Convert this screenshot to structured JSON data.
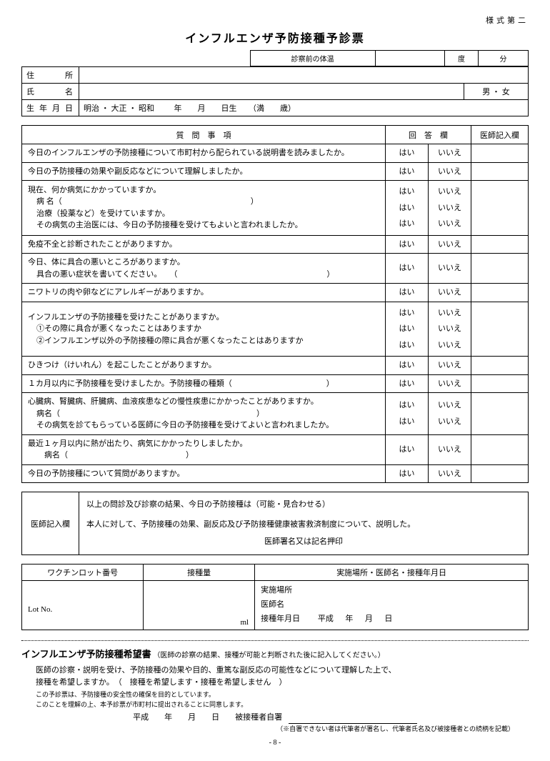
{
  "formNumber": "様式第二",
  "title": "インフルエンザ予防接種予診票",
  "temp": {
    "label": "診察前の体温",
    "deg": "度",
    "min": "分"
  },
  "info": {
    "addressLabel": "住　　所",
    "nameLabel": "氏　　名",
    "genderLabel": "男 ・ 女",
    "dobLabel": "生 年 月 日",
    "dobEras": "明治 ・ 大正 ・ 昭和",
    "dobYear": "年",
    "dobMonth": "月",
    "dobDayBorn": "日生",
    "ageOpen": "（満",
    "ageClose": "歳）"
  },
  "qHeader": {
    "question": "質　問　事　項",
    "answer": "回　答　欄",
    "doctor": "医師記入欄"
  },
  "ans": {
    "yes": "はい",
    "no": "いいえ"
  },
  "questions": [
    {
      "lines": [
        "今日のインフルエンザの予防接種について市町村から配られている説明書を読みましたか。"
      ]
    },
    {
      "lines": [
        "今日の予防接種の効果や副反応などについて理解しましたか。"
      ]
    },
    {
      "lines": [
        "現在、何か病気にかかっていますか。",
        "病 名（　　　　　　　　　　　　　　　　　　　　　　　　）",
        "治療（投薬など）を受けていますか。",
        "その病気の主治医には、今日の予防接種を受けてもよいと言われましたか。"
      ],
      "multiAns": 3
    },
    {
      "lines": [
        "免疫不全と診断されたことがありますか。"
      ]
    },
    {
      "lines": [
        "今日、体に具合の悪いところがありますか。",
        "具合の悪い症状を書いてください。　　（　　　　　　　　　　　　　　　　　　　）"
      ]
    },
    {
      "lines": [
        "ニワトリの肉や卵などにアレルギーがありますか。"
      ]
    },
    {
      "lines": [
        "インフルエンザの予防接種を受けたことがありますか。",
        "①その際に具合が悪くなったことはありますか",
        "②インフルエンザ以外の予防接種の際に具合が悪くなったことはありますか"
      ],
      "multiAns": 3
    },
    {
      "lines": [
        "ひきつけ（けいれん）を起こしたことがありますか。"
      ]
    },
    {
      "lines": [
        "１カ月以内に予防接種を受けましたか。予防接種の種類（　　　　　　　　　　　　）"
      ]
    },
    {
      "lines": [
        "心臓病、腎臓病、肝臓病、血液疾患などの慢性疾患にかかったことがありますか。",
        "病名（　　　　　　　　　　　　　　　　　　　　　　　　　）",
        "",
        " その病気を診てもらっている医師に今日の予防接種を受けてよいと言われましたか。"
      ],
      "multiAns": 2
    },
    {
      "lines": [
        "最近１ヶ月以内に熱が出たり、病気にかかったりしましたか。",
        "　病名（　　　　　　　　　　　　　　　）"
      ]
    },
    {
      "lines": [
        "今日の予防接種について質問がありますか。"
      ]
    }
  ],
  "doctorBox": {
    "label": "医師記入欄",
    "line1": "以上の問診及び診察の結果、今日の予防接種は（可能・見合わせる）",
    "line2": "本人に対して、予防接種の効果、副反応及び予防接種健康被害救済制度について、説明した。",
    "sig": "医師署名又は記名押印"
  },
  "vaccine": {
    "h1": "ワクチンロット番号",
    "h2": "接種量",
    "h3": "実施場所・医師名・接種年月日",
    "lot": "Lot No.",
    "ml": "ml",
    "place": "実施場所",
    "doctor": "医師名",
    "dateLabel": "接種年月日",
    "era": "平成",
    "y": "年",
    "m": "月",
    "d": "日"
  },
  "consent": {
    "title": "インフルエンザ予防接種希望書",
    "titleNote": "（医師の診察の結果、接種が可能と判断された後に記入してください。）",
    "p1": "医師の診察・説明を受け、予防接種の効果や目的、重篤な副反応の可能性などについて理解した上で、",
    "p2": "接種を希望しますか。　（　接種を希望します・接種を希望しません　）",
    "p3": "この予診票は、予防接種の安全性の確保を目的としています。",
    "p4": "このことを理解の上、本予診票が市町村に提出されることに同意します。",
    "sigDate": "平成　　年　　月　　日　　被接種者自署",
    "sigNote": "（※自署できない者は代筆者が署名し、代筆者氏名及び被接種者との続柄を記載）"
  },
  "pageNo": "- 8 -"
}
